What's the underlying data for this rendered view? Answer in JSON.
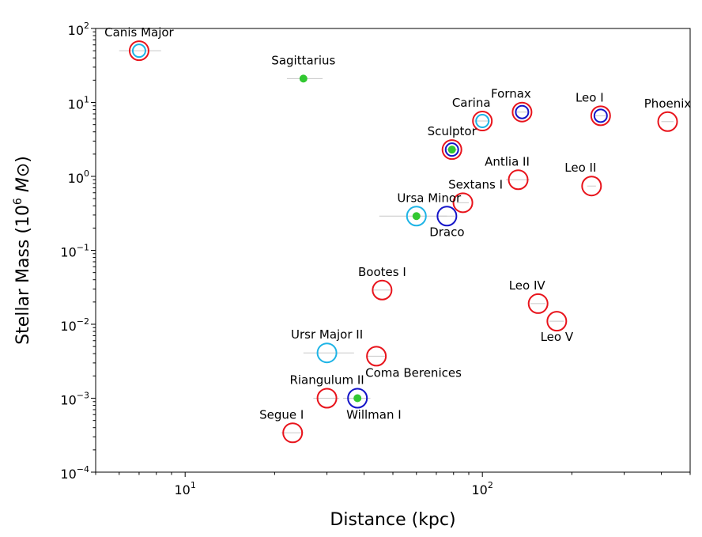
{
  "chart_data": {
    "type": "scatter",
    "xlabel": "Distance (kpc)",
    "ylabel": "Stellar Mass (10",
    "ylabel_exp": "6",
    "ylabel_unit": "M",
    "ylabel_symbol": "⊙",
    "ylabel_close": ")",
    "x_scale": "log",
    "y_scale": "log",
    "xlim": [
      5,
      500
    ],
    "ylim": [
      0.0001,
      100
    ],
    "grid": false,
    "x_ticks": [
      {
        "value": 10,
        "base": "10",
        "exp": "1"
      },
      {
        "value": 100,
        "base": "10",
        "exp": "2"
      }
    ],
    "y_ticks": [
      {
        "value": 0.0001,
        "base": "10",
        "exp": "−4"
      },
      {
        "value": 0.001,
        "base": "10",
        "exp": "−3"
      },
      {
        "value": 0.01,
        "base": "10",
        "exp": "−2"
      },
      {
        "value": 0.1,
        "base": "10",
        "exp": "−1"
      },
      {
        "value": 1,
        "base": "10",
        "exp": "0"
      },
      {
        "value": 10,
        "base": "10",
        "exp": "1"
      },
      {
        "value": 100,
        "base": "10",
        "exp": "2"
      }
    ],
    "colors": {
      "red": "#e8141c",
      "blue": "#1414c8",
      "cyan": "#1eb4e6",
      "green": "#32c832",
      "errorbar": "#c8c8c8"
    },
    "points": [
      {
        "name": "Canis Major",
        "x": 7,
        "y": 50,
        "xerr": [
          6,
          8.3
        ],
        "rings": [
          "red",
          "cyan"
        ],
        "dot": false,
        "label_pos": "above"
      },
      {
        "name": "Sagittarius",
        "x": 25,
        "y": 21,
        "xerr": [
          22,
          29
        ],
        "rings": [],
        "dot": true,
        "label_pos": "above"
      },
      {
        "name": "Carina",
        "x": 100,
        "y": 5.6,
        "xerr": [
          94,
          106
        ],
        "rings": [
          "red",
          "cyan"
        ],
        "dot": false,
        "label_pos": "above-left"
      },
      {
        "name": "Fornax",
        "x": 136,
        "y": 7.4,
        "xerr": [
          130,
          142
        ],
        "rings": [
          "red",
          "blue"
        ],
        "dot": false,
        "label_pos": "above-left"
      },
      {
        "name": "Leo I",
        "x": 250,
        "y": 6.6,
        "xerr": [
          240,
          260
        ],
        "rings": [
          "red",
          "blue"
        ],
        "dot": false,
        "label_pos": "above-left"
      },
      {
        "name": "Phoenix",
        "x": 420,
        "y": 5.5,
        "xerr": [
          400,
          440
        ],
        "rings": [
          "red"
        ],
        "dot": false,
        "label_pos": "above"
      },
      {
        "name": "Sculptor",
        "x": 79,
        "y": 2.3,
        "xerr": [
          75,
          83
        ],
        "rings": [
          "red",
          "blue"
        ],
        "dot": true,
        "label_pos": "above"
      },
      {
        "name": "Antlia II",
        "x": 132,
        "y": 0.9,
        "xerr": [
          120,
          144
        ],
        "rings": [
          "red"
        ],
        "dot": false,
        "label_pos": "above-left"
      },
      {
        "name": "Leo II",
        "x": 233,
        "y": 0.74,
        "xerr": [
          225,
          241
        ],
        "rings": [
          "red"
        ],
        "dot": false,
        "label_pos": "above-left"
      },
      {
        "name": "Sextans I",
        "x": 86,
        "y": 0.44,
        "xerr": [
          82,
          90
        ],
        "rings": [
          "red"
        ],
        "dot": false,
        "label_pos": "above-right"
      },
      {
        "name": "Ursa Minor",
        "x": 60,
        "y": 0.29,
        "xerr": [
          45,
          76
        ],
        "rings": [
          "cyan"
        ],
        "dot": true,
        "label_pos": "above-right"
      },
      {
        "name": "Draco",
        "x": 76,
        "y": 0.29,
        "xerr": [
          71,
          81
        ],
        "rings": [
          "blue"
        ],
        "dot": false,
        "label_pos": "below"
      },
      {
        "name": "Bootes I",
        "x": 46,
        "y": 0.029,
        "xerr": [
          43,
          49
        ],
        "rings": [
          "red"
        ],
        "dot": false,
        "label_pos": "above"
      },
      {
        "name": "Leo IV",
        "x": 154,
        "y": 0.019,
        "xerr": [
          145,
          163
        ],
        "rings": [
          "red"
        ],
        "dot": false,
        "label_pos": "above-left"
      },
      {
        "name": "Leo V",
        "x": 178,
        "y": 0.011,
        "xerr": [
          168,
          188
        ],
        "rings": [
          "red"
        ],
        "dot": false,
        "label_pos": "below"
      },
      {
        "name": "Ursr Major II",
        "x": 30,
        "y": 0.0041,
        "xerr": [
          25,
          37
        ],
        "rings": [
          "cyan"
        ],
        "dot": false,
        "label_pos": "above"
      },
      {
        "name": "Coma Berenices",
        "x": 44,
        "y": 0.0037,
        "xerr": [
          41,
          47
        ],
        "rings": [
          "red"
        ],
        "dot": false,
        "label_pos": "below-right"
      },
      {
        "name": "Riangulum II",
        "x": 30,
        "y": 0.001,
        "xerr": [
          27,
          33
        ],
        "rings": [
          "red"
        ],
        "dot": false,
        "label_pos": "above"
      },
      {
        "name": "Willman I",
        "x": 38,
        "y": 0.001,
        "xerr": [
          34,
          42
        ],
        "rings": [
          "blue"
        ],
        "dot": true,
        "label_pos": "below-right"
      },
      {
        "name": "Segue I",
        "x": 23,
        "y": 0.00034,
        "xerr": [
          21,
          25
        ],
        "rings": [
          "red"
        ],
        "dot": false,
        "label_pos": "above-left"
      }
    ]
  }
}
